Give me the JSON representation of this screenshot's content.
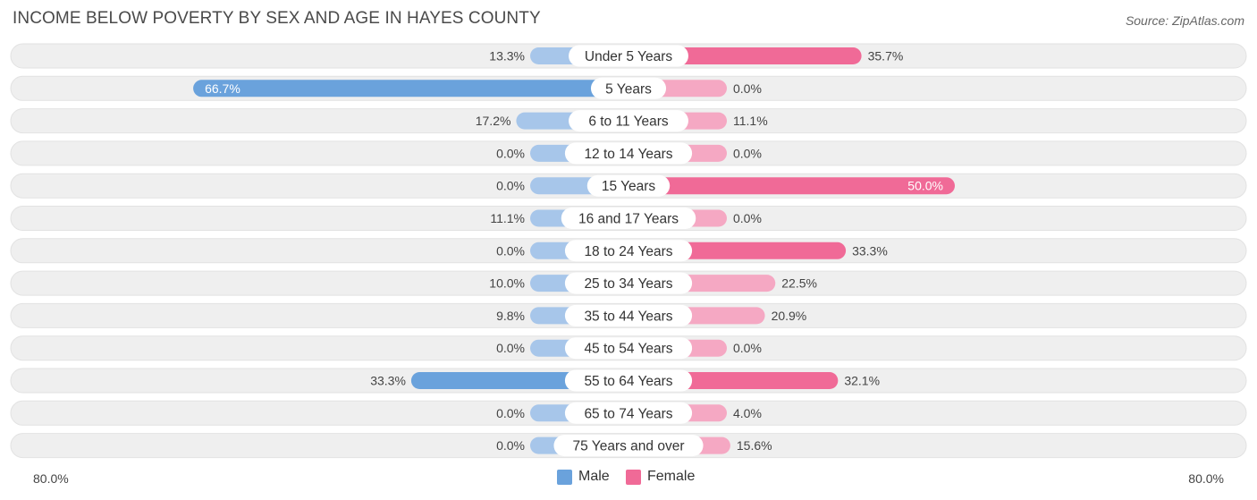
{
  "title": "INCOME BELOW POVERTY BY SEX AND AGE IN HAYES COUNTY",
  "source": "Source: ZipAtlas.com",
  "colors": {
    "male": "#6aa2dc",
    "male_light": "#a7c6ea",
    "female": "#f06a97",
    "female_light": "#f5a8c3",
    "row_bg": "#efefef"
  },
  "chart_data": {
    "type": "bar",
    "orientation": "horizontal-diverging",
    "categories": [
      "Under 5 Years",
      "5 Years",
      "6 to 11 Years",
      "12 to 14 Years",
      "15 Years",
      "16 and 17 Years",
      "18 to 24 Years",
      "25 to 34 Years",
      "35 to 44 Years",
      "45 to 54 Years",
      "55 to 64 Years",
      "65 to 74 Years",
      "75 Years and over"
    ],
    "series": [
      {
        "name": "Male",
        "values": [
          13.3,
          66.7,
          17.2,
          0.0,
          0.0,
          11.1,
          0.0,
          10.0,
          9.8,
          0.0,
          33.3,
          0.0,
          0.0
        ]
      },
      {
        "name": "Female",
        "values": [
          35.7,
          0.0,
          11.1,
          0.0,
          50.0,
          0.0,
          33.3,
          22.5,
          20.9,
          0.0,
          32.1,
          4.0,
          15.6
        ]
      }
    ],
    "value_labels": {
      "male": [
        "13.3%",
        "66.7%",
        "17.2%",
        "0.0%",
        "0.0%",
        "11.1%",
        "0.0%",
        "10.0%",
        "9.8%",
        "0.0%",
        "33.3%",
        "0.0%",
        "0.0%"
      ],
      "female": [
        "35.7%",
        "0.0%",
        "11.1%",
        "0.0%",
        "50.0%",
        "0.0%",
        "33.3%",
        "22.5%",
        "20.9%",
        "0.0%",
        "32.1%",
        "4.0%",
        "15.6%"
      ]
    },
    "xlim": [
      -80,
      80
    ],
    "axis_labels": {
      "left": "80.0%",
      "right": "80.0%"
    },
    "legend": [
      "Male",
      "Female"
    ],
    "legend_position": "bottom-center"
  }
}
